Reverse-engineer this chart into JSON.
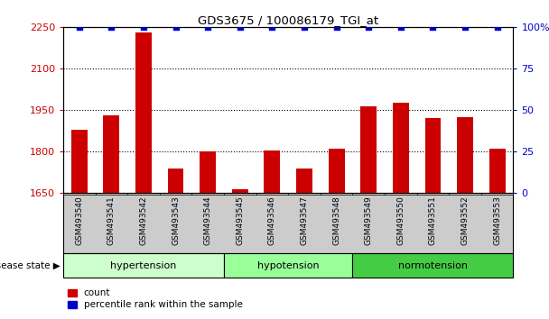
{
  "title": "GDS3675 / 100086179_TGI_at",
  "samples": [
    "GSM493540",
    "GSM493541",
    "GSM493542",
    "GSM493543",
    "GSM493544",
    "GSM493545",
    "GSM493546",
    "GSM493547",
    "GSM493548",
    "GSM493549",
    "GSM493550",
    "GSM493551",
    "GSM493552",
    "GSM493553"
  ],
  "counts": [
    1880,
    1930,
    2230,
    1740,
    1800,
    1665,
    1805,
    1740,
    1810,
    1965,
    1975,
    1920,
    1925,
    1810
  ],
  "percentile": [
    100,
    100,
    100,
    100,
    100,
    100,
    100,
    100,
    100,
    100,
    100,
    100,
    100,
    100
  ],
  "ylim_left": [
    1650,
    2250
  ],
  "ylim_right": [
    0,
    100
  ],
  "yticks_left": [
    1650,
    1800,
    1950,
    2100,
    2250
  ],
  "yticks_right": [
    0,
    25,
    50,
    75,
    100
  ],
  "groups": [
    {
      "label": "hypertension",
      "start": 0,
      "end": 5,
      "color": "#ccffcc"
    },
    {
      "label": "hypotension",
      "start": 5,
      "end": 9,
      "color": "#99ff99"
    },
    {
      "label": "normotension",
      "start": 9,
      "end": 14,
      "color": "#44cc44"
    }
  ],
  "bar_color": "#cc0000",
  "dot_color": "#0000cc",
  "baseline": 1650,
  "xtick_bg_color": "#cccccc",
  "tick_label_color_left": "#cc0000",
  "tick_label_color_right": "#0000cc",
  "bar_width": 0.5,
  "dot_size": 16
}
